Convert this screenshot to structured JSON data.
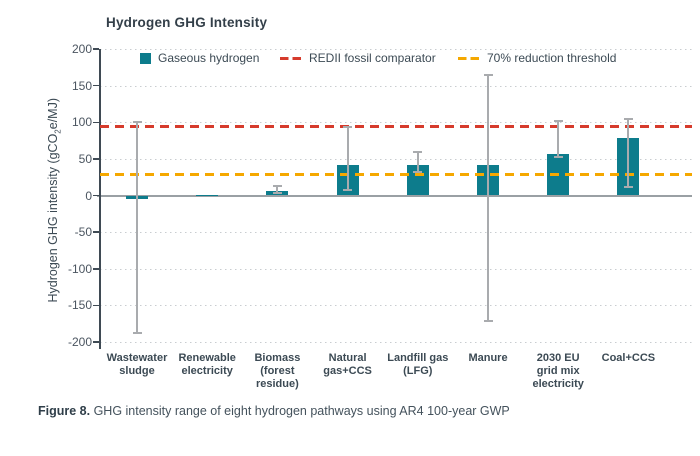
{
  "title": "Hydrogen GHG Intensity",
  "y_axis": {
    "label_pre": "Hydrogen GHG intensity (gCO",
    "label_sub": "2",
    "label_post": "e/MJ)",
    "ticks": [
      200,
      150,
      100,
      50,
      0,
      -50,
      -100,
      -150,
      -200
    ],
    "min": -200,
    "max": 200
  },
  "legend": [
    {
      "label": "Gaseous hydrogen",
      "type": "square",
      "color": "#0d7c8c"
    },
    {
      "label": "REDII fossil comparator",
      "type": "dash",
      "color": "#d63b2c"
    },
    {
      "label": "70% reduction threshold",
      "type": "dash",
      "color": "#f5a800"
    }
  ],
  "chart_data": {
    "type": "bar",
    "title": "Hydrogen GHG Intensity",
    "xlabel": "",
    "ylabel": "Hydrogen GHG intensity (gCO2e/MJ)",
    "ylim": [
      -200,
      200
    ],
    "grid": "dotted horizontal lines every 50, solid line at 0",
    "legend_position": "top inside",
    "categories": [
      "Wastewater\nsludge",
      "Renewable\nelectricity",
      "Biomass\n(forest\nresidue)",
      "Natural\ngas+CCS",
      "Landfill gas\n(LFG)",
      "Manure",
      "2030 EU\ngrid mix\nelectricity",
      "Coal+CCS"
    ],
    "series": [
      {
        "name": "Gaseous hydrogen",
        "color": "#0d7c8c",
        "values": [
          -5,
          1,
          6,
          42,
          42,
          42,
          57,
          78
        ],
        "error_low": [
          -188,
          null,
          3,
          8,
          32,
          -172,
          52,
          12
        ],
        "error_high": [
          100,
          null,
          13,
          93,
          60,
          165,
          102,
          105
        ]
      }
    ],
    "reference_lines": [
      {
        "name": "REDII fossil comparator",
        "value": 94,
        "color": "#d63b2c",
        "style": "dashed"
      },
      {
        "name": "70% reduction threshold",
        "value": 28,
        "color": "#f5a800",
        "style": "dashed"
      }
    ]
  },
  "caption": {
    "label": "Figure 8.",
    "text": " GHG intensity range of eight hydrogen pathways using AR4 100-year GWP"
  },
  "colors": {
    "bar_teal": "#0d7c8c",
    "redii_red": "#d63b2c",
    "threshold_amber": "#f5a800",
    "error_gray": "#a9abae",
    "axis_dark": "#3f4a54",
    "zero_line": "#9aa0a4",
    "grid_dotted": "#c9cdd0",
    "text_dark": "#333f49",
    "background": "#ffffff"
  }
}
